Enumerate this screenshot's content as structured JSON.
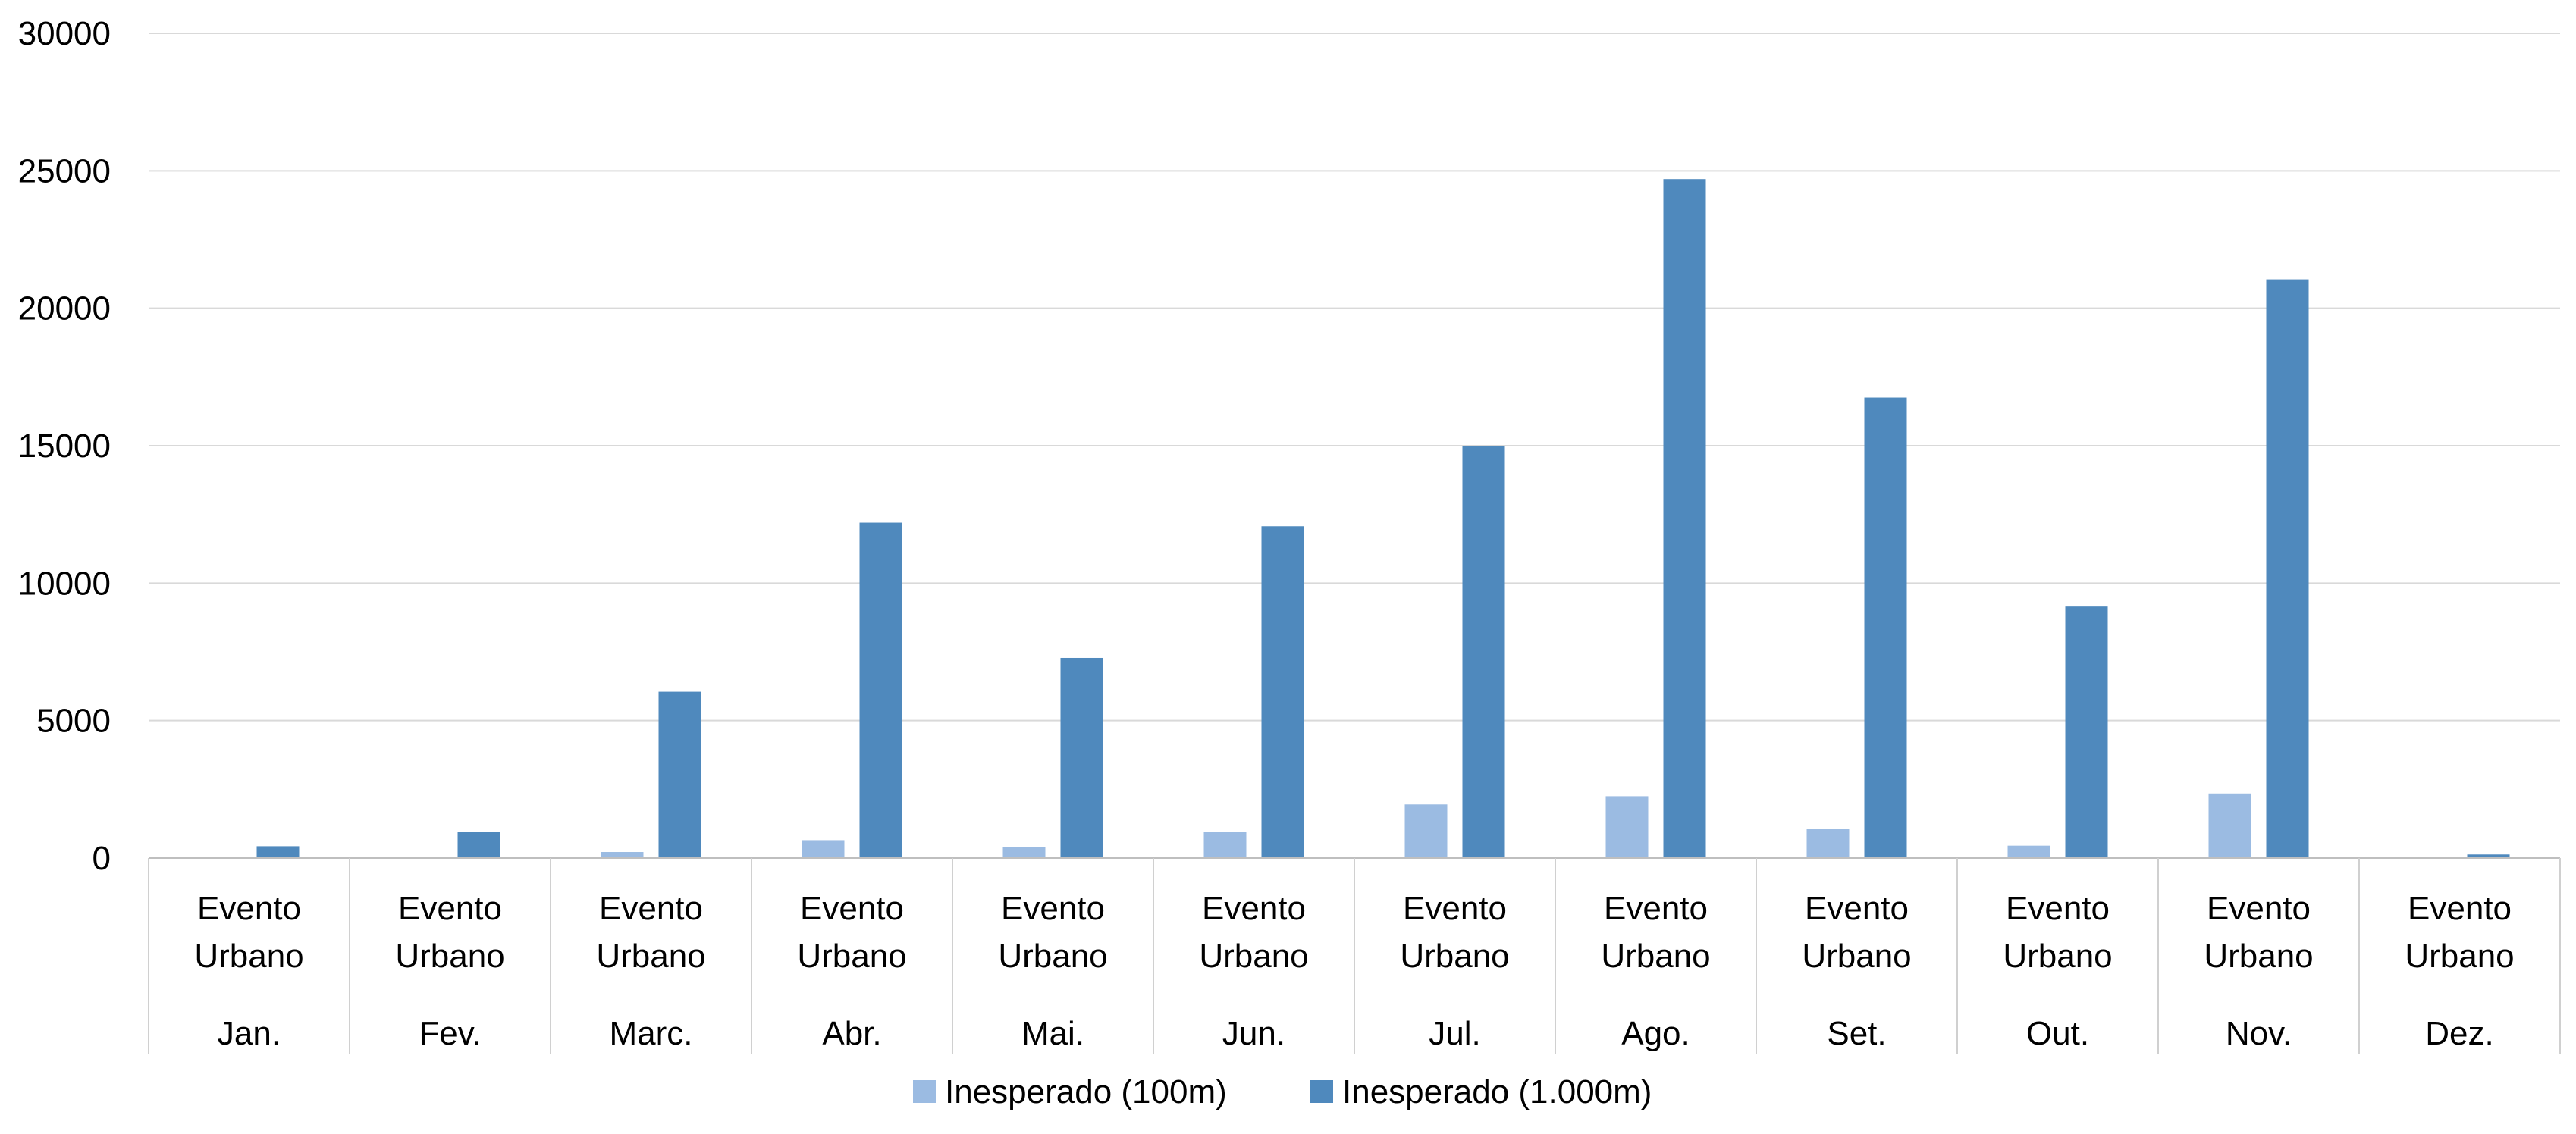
{
  "chart_data": {
    "type": "bar",
    "title": "",
    "xlabel": "",
    "ylabel": "",
    "ylim": [
      0,
      30000
    ],
    "yticks": [
      0,
      5000,
      10000,
      15000,
      20000,
      25000,
      30000
    ],
    "grid": true,
    "legend": "bottom",
    "category_label": "Evento Urbano",
    "categories": [
      "Jan.",
      "Fev.",
      "Marc.",
      "Abr.",
      "Mai.",
      "Jun.",
      "Jul.",
      "Ago.",
      "Set.",
      "Out.",
      "Nov.",
      "Dez."
    ],
    "series": [
      {
        "name": "Inesperado (100m)",
        "color": "#9bbbe2",
        "values": [
          10,
          40,
          220,
          650,
          400,
          950,
          1950,
          2250,
          1050,
          450,
          2350,
          10
        ]
      },
      {
        "name": "Inesperado (1.000m)",
        "color": "#4f89bd",
        "values": [
          430,
          950,
          6050,
          12200,
          7280,
          12070,
          15000,
          24700,
          16750,
          9150,
          21050,
          130
        ]
      }
    ]
  }
}
